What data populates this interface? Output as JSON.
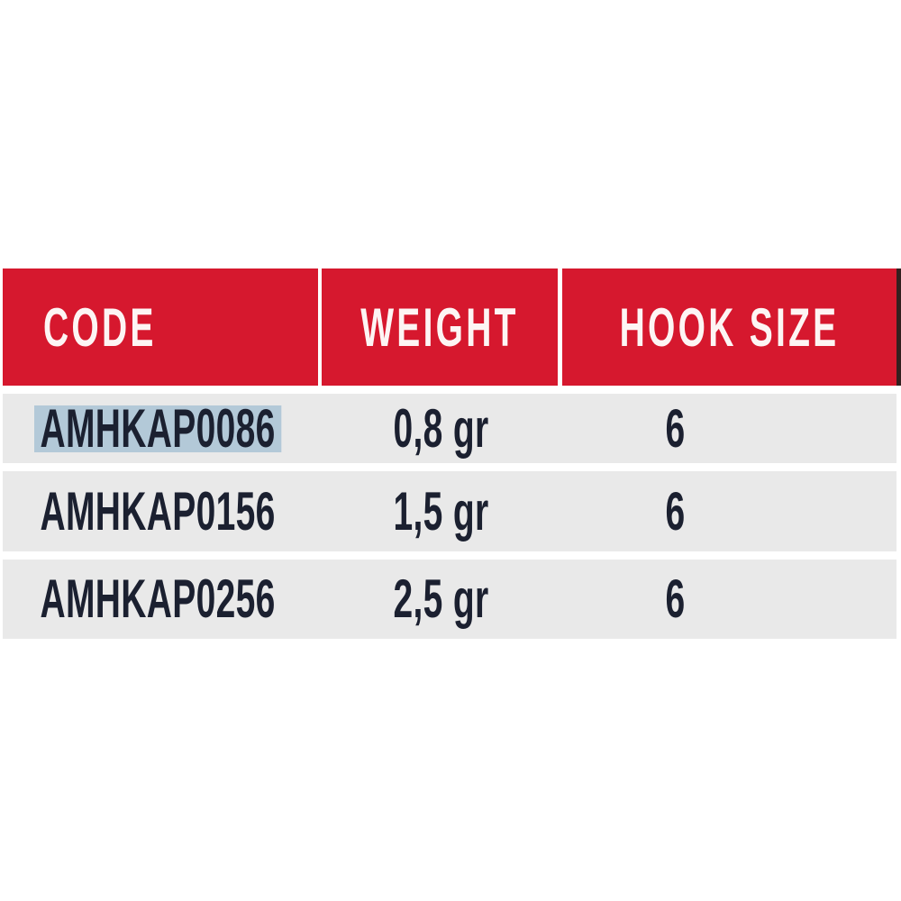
{
  "table": {
    "columns": [
      {
        "label": "CODE"
      },
      {
        "label": "WEIGHT"
      },
      {
        "label": "HOOK SIZE"
      }
    ],
    "rows": [
      {
        "code": "AMHKAP0086",
        "weight": "0,8 gr",
        "hook_size": "6",
        "code_selected": true
      },
      {
        "code": "AMHKAP0156",
        "weight": "1,5 gr",
        "hook_size": "6",
        "code_selected": false
      },
      {
        "code": "AMHKAP0256",
        "weight": "2,5 gr",
        "hook_size": "6",
        "code_selected": false
      }
    ]
  },
  "colors": {
    "header_background": "#d6182e",
    "header_text": "#ffffff",
    "header_right_edge": "#33201f",
    "row_background": "#e9e9e9",
    "cell_text": "#1b2030",
    "selection_highlight": "#b3c9d8",
    "page_background": "#ffffff"
  },
  "chart_data": {
    "type": "table",
    "title": "",
    "columns": [
      "CODE",
      "WEIGHT",
      "HOOK SIZE"
    ],
    "rows": [
      [
        "AMHKAP0086",
        "0,8 gr",
        "6"
      ],
      [
        "AMHKAP0156",
        "1,5 gr",
        "6"
      ],
      [
        "AMHKAP0256",
        "2,5 gr",
        "6"
      ]
    ],
    "notes": "First code cell (AMHKAP0086) shows a blue text-selection highlight; header row is red with white condensed uppercase labels."
  }
}
